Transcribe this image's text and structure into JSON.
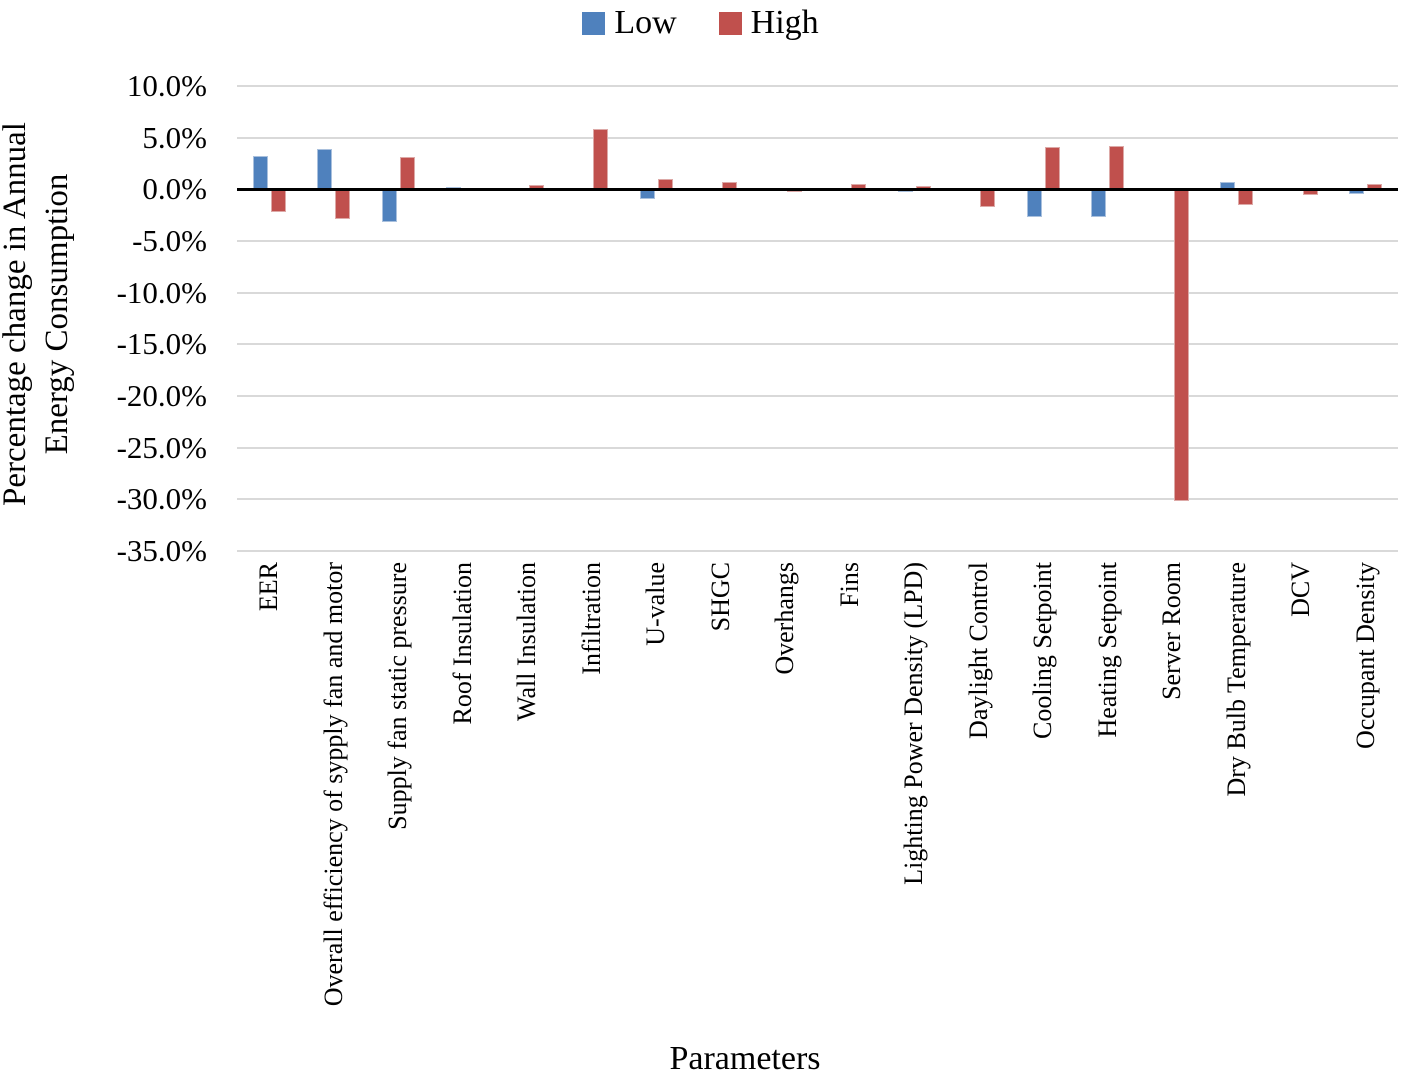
{
  "legend": {
    "items": [
      {
        "label": "Low",
        "color": "#4f81bd"
      },
      {
        "label": "High",
        "color": "#c0504d"
      }
    ]
  },
  "y_axis": {
    "title_line1": "Percentage change in Annual",
    "title_line2": "Energy Consumption"
  },
  "x_axis": {
    "title": "Parameters"
  },
  "chart_data": {
    "type": "bar",
    "title": "",
    "xlabel": "Parameters",
    "ylabel": "Percentage change in Annual Energy Consumption",
    "ylim": [
      -35,
      10
    ],
    "ytick_step": 5,
    "yticks": [
      "10.0%",
      "5.0%",
      "0.0%",
      "-5.0%",
      "-10.0%",
      "-15.0%",
      "-20.0%",
      "-25.0%",
      "-30.0%",
      "-35.0%"
    ],
    "grid": true,
    "legend_position": "top",
    "categories": [
      "EER",
      "Overall efficiency of sypply fan and motor",
      "Supply fan static pressure",
      "Roof Insulation",
      "Wall Insulation",
      "Infiltration",
      "U-value",
      "SHGC",
      "Overhangs",
      "Fins",
      "Lighting Power Density (LPD)",
      "Daylight Control",
      "Cooling Setpoint",
      "Heating Setpoint",
      "Server Room",
      "Dry Bulb Temperature",
      "DCV",
      "Occupant Density"
    ],
    "series": [
      {
        "name": "Low",
        "color": "#4f81bd",
        "values": [
          3.2,
          3.9,
          -3.2,
          0.2,
          -0.1,
          -0.2,
          -1.0,
          -0.1,
          -0.1,
          -0.1,
          -0.3,
          -0.1,
          -2.7,
          -2.7,
          -0.1,
          0.7,
          -0.1,
          -0.5
        ]
      },
      {
        "name": "High",
        "color": "#c0504d",
        "values": [
          -2.2,
          -2.9,
          3.1,
          -0.2,
          0.4,
          5.8,
          1.0,
          0.7,
          -0.3,
          0.5,
          0.3,
          -1.7,
          4.1,
          4.2,
          -30.2,
          -1.5,
          -0.6,
          0.5
        ]
      }
    ]
  }
}
